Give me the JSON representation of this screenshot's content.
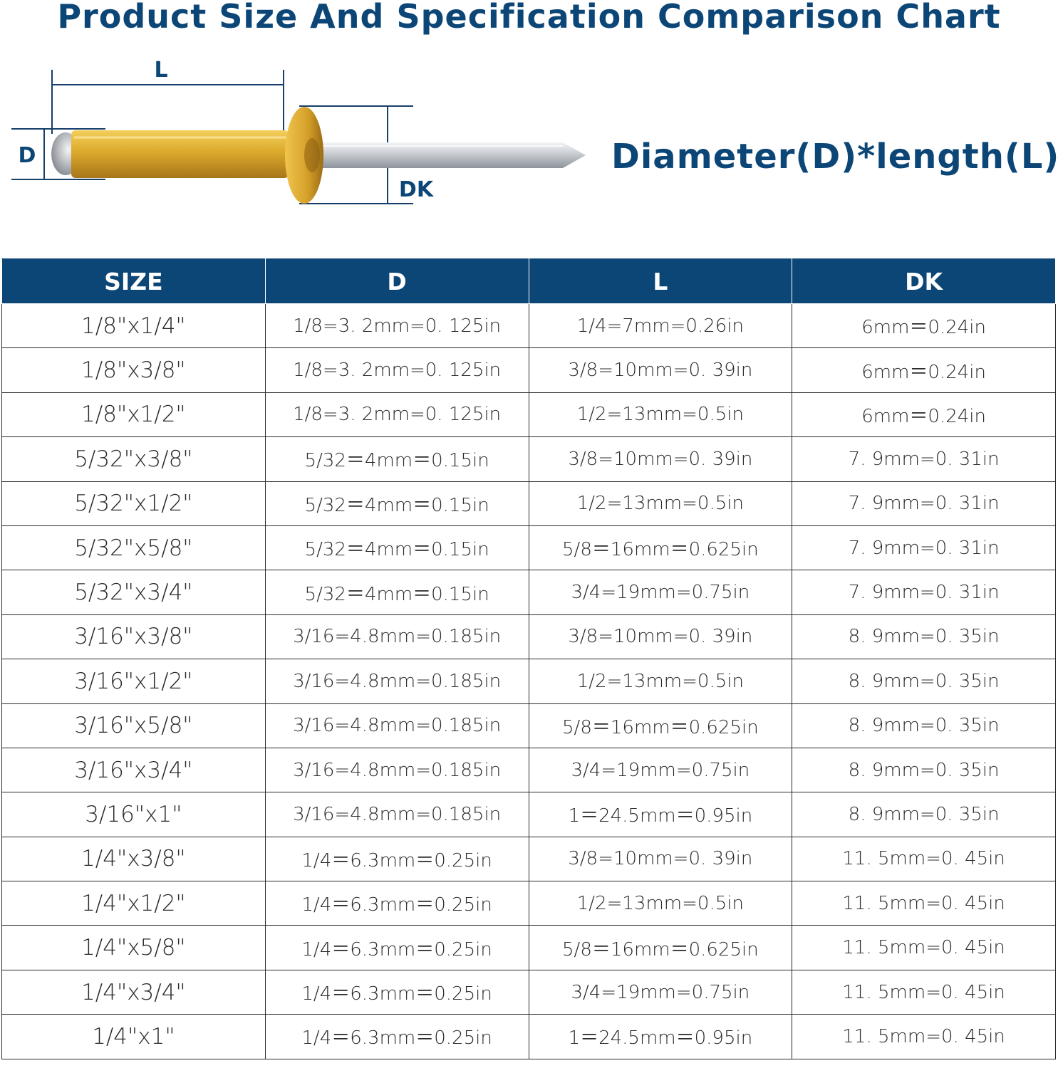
{
  "title": "Product Size And Specification Comparison Chart",
  "diagram": {
    "label_length": "L",
    "label_diameter": "D",
    "label_head": "DK",
    "colors": {
      "body": "#d8a627",
      "mandrel": "#c9ccd0",
      "dimension_line": "#163f6b"
    }
  },
  "formula": "Diameter(D)*length(L)",
  "table": {
    "header_color": "#0b4677",
    "columns": [
      "SIZE",
      "D",
      "L",
      "DK"
    ],
    "rows": [
      [
        "1/8\"x1/4\"",
        "1/8=3. 2mm=0. 125in",
        "1/4=7mm=0.26in",
        "6mm＝0.24in"
      ],
      [
        "1/8\"x3/8\"",
        "1/8=3. 2mm=0. 125in",
        "3/8=10mm=0. 39in",
        "6mm＝0.24in"
      ],
      [
        "1/8\"x1/2\"",
        "1/8=3. 2mm=0. 125in",
        "1/2=13mm=0.5in",
        "6mm＝0.24in"
      ],
      [
        "5/32\"x3/8\"",
        "5/32＝4mm＝0.15in",
        "3/8=10mm=0. 39in",
        "7. 9mm=0. 31in"
      ],
      [
        "5/32\"x1/2\"",
        "5/32＝4mm＝0.15in",
        "1/2=13mm=0.5in",
        "7. 9mm=0. 31in"
      ],
      [
        "5/32\"x5/8\"",
        "5/32＝4mm＝0.15in",
        "5/8＝16mm＝0.625in",
        "7. 9mm=0. 31in"
      ],
      [
        "5/32\"x3/4\"",
        "5/32＝4mm＝0.15in",
        "3/4=19mm=0.75in",
        "7. 9mm=0. 31in"
      ],
      [
        "3/16\"x3/8\"",
        "3/16=4.8mm=0.185in",
        "3/8=10mm=0. 39in",
        "8. 9mm=0. 35in"
      ],
      [
        "3/16\"x1/2\"",
        "3/16=4.8mm=0.185in",
        "1/2=13mm=0.5in",
        "8. 9mm=0. 35in"
      ],
      [
        "3/16\"x5/8\"",
        "3/16=4.8mm=0.185in",
        "5/8＝16mm＝0.625in",
        "8. 9mm=0. 35in"
      ],
      [
        "3/16\"x3/4\"",
        "3/16=4.8mm=0.185in",
        "3/4=19mm=0.75in",
        "8. 9mm=0. 35in"
      ],
      [
        "3/16\"x1\"",
        "3/16=4.8mm=0.185in",
        "1＝24.5mm＝0.95in",
        "8. 9mm=0. 35in"
      ],
      [
        "1/4\"x3/8\"",
        "1/4＝6.3mm＝0.25in",
        "3/8=10mm=0. 39in",
        "11. 5mm=0. 45in"
      ],
      [
        "1/4\"x1/2\"",
        "1/4＝6.3mm＝0.25in",
        "1/2=13mm=0.5in",
        "11. 5mm=0. 45in"
      ],
      [
        "1/4\"x5/8\"",
        "1/4＝6.3mm＝0.25in",
        "5/8＝16mm＝0.625in",
        "11. 5mm=0. 45in"
      ],
      [
        "1/4\"x3/4\"",
        "1/4＝6.3mm＝0.25in",
        "3/4=19mm=0.75in",
        "11. 5mm=0. 45in"
      ],
      [
        "1/4\"x1\"",
        "1/4＝6.3mm＝0.25in",
        "1＝24.5mm＝0.95in",
        "11. 5mm=0. 45in"
      ]
    ]
  }
}
